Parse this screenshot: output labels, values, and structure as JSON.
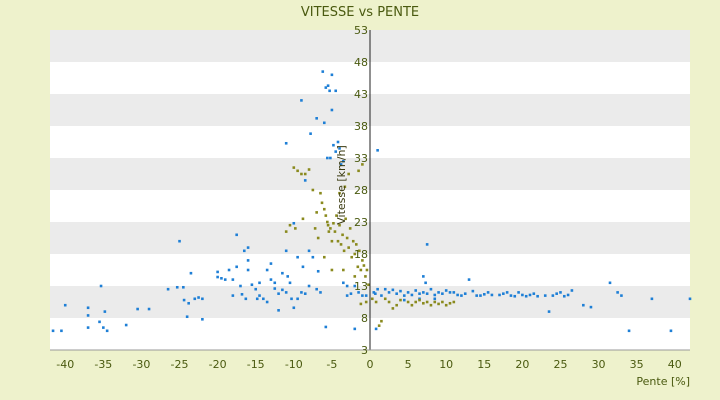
{
  "chart_data": {
    "type": "scatter",
    "title": "VITESSE vs PENTE",
    "xlabel": "Pente [%]",
    "ylabel": "Vitesse [km/h]",
    "xlim": [
      -42,
      42
    ],
    "ylim": [
      3,
      53
    ],
    "x_ticks": [
      -40,
      -35,
      -30,
      -25,
      -20,
      -15,
      -10,
      -5,
      0,
      5,
      10,
      15,
      20,
      25,
      30,
      35,
      40
    ],
    "y_ticks": [
      3,
      8,
      13,
      18,
      23,
      28,
      33,
      38,
      43,
      48,
      53
    ],
    "grid": "horizontal bands",
    "legend": "none",
    "colors": {
      "background": "#eef2cc",
      "band_light": "#ffffff",
      "band_dark": "#ebebeb",
      "series_blue": "#1e7fd6",
      "series_olive": "#8a8a1e",
      "text": "#4a5a10"
    },
    "series": [
      {
        "color": "#1e7fd6",
        "points": [
          [
            -41.6,
            6
          ],
          [
            -40.5,
            6
          ],
          [
            -40,
            10
          ],
          [
            -37,
            9.6
          ],
          [
            -37,
            8.4
          ],
          [
            -37,
            6.5
          ],
          [
            -35.5,
            7.4
          ],
          [
            -35.3,
            13
          ],
          [
            -35,
            6.5
          ],
          [
            -34.8,
            9
          ],
          [
            -34.5,
            6
          ],
          [
            -32,
            6.9
          ],
          [
            -30.5,
            9.4
          ],
          [
            -29,
            9.4
          ],
          [
            -26.5,
            12.5
          ],
          [
            -25.3,
            12.8
          ],
          [
            -25,
            20
          ],
          [
            -24.5,
            12.8
          ],
          [
            -24.4,
            10.8
          ],
          [
            -24,
            8.2
          ],
          [
            -23.8,
            10.3
          ],
          [
            -23.5,
            15
          ],
          [
            -23,
            11
          ],
          [
            -22.5,
            11.2
          ],
          [
            -22,
            7.8
          ],
          [
            -22,
            11
          ],
          [
            -20,
            15.2
          ],
          [
            -20,
            14.4
          ],
          [
            -19.5,
            14.2
          ],
          [
            -19,
            14
          ],
          [
            -18.5,
            15.5
          ],
          [
            -18,
            11.5
          ],
          [
            -18,
            14
          ],
          [
            -17.5,
            21
          ],
          [
            -17.5,
            16
          ],
          [
            -17,
            13
          ],
          [
            -16.8,
            11.7
          ],
          [
            -16.5,
            18.5
          ],
          [
            -16.3,
            11
          ],
          [
            -16,
            19
          ],
          [
            -16,
            17
          ],
          [
            -16,
            15.5
          ],
          [
            -15.5,
            13.2
          ],
          [
            -15,
            12.5
          ],
          [
            -14.8,
            11
          ],
          [
            -14.5,
            11.5
          ],
          [
            -14.5,
            13.5
          ],
          [
            -14,
            11
          ],
          [
            -13.5,
            15.5
          ],
          [
            -13.5,
            10.5
          ],
          [
            -13,
            14
          ],
          [
            -13,
            16.5
          ],
          [
            -12.5,
            12.6
          ],
          [
            -12.5,
            13.5
          ],
          [
            -12,
            11.8
          ],
          [
            -12,
            9.2
          ],
          [
            -11.5,
            15
          ],
          [
            -11.5,
            12.4
          ],
          [
            -11,
            18.5
          ],
          [
            -11,
            35.3
          ],
          [
            -11,
            12
          ],
          [
            -10.8,
            14.5
          ],
          [
            -10.5,
            13.5
          ],
          [
            -10.3,
            11
          ],
          [
            -10,
            22.8
          ],
          [
            -10,
            9.6
          ],
          [
            -9.5,
            17.5
          ],
          [
            -9.5,
            11
          ],
          [
            -9,
            42
          ],
          [
            -9,
            12
          ],
          [
            -8.8,
            16
          ],
          [
            -8.5,
            29.5
          ],
          [
            -8.5,
            11.8
          ],
          [
            -8,
            18.5
          ],
          [
            -8,
            13
          ],
          [
            -7.8,
            36.8
          ],
          [
            -7.5,
            17.5
          ],
          [
            -7,
            39.2
          ],
          [
            -7,
            12.5
          ],
          [
            -6.8,
            15.3
          ],
          [
            -6.5,
            12
          ],
          [
            -6.2,
            46.5
          ],
          [
            -6,
            38.5
          ],
          [
            -5.8,
            44
          ],
          [
            -5.6,
            33
          ],
          [
            -5.5,
            44.3
          ],
          [
            -5.3,
            43.5
          ],
          [
            -5.2,
            33
          ],
          [
            -5,
            40.5
          ],
          [
            -5,
            46
          ],
          [
            -4.8,
            35
          ],
          [
            -4.5,
            43.5
          ],
          [
            -4.5,
            34
          ],
          [
            -4.2,
            35.5
          ],
          [
            -4,
            34.5
          ],
          [
            -3.8,
            32
          ],
          [
            -3.5,
            32.5
          ],
          [
            -3.5,
            13.5
          ],
          [
            -3,
            13
          ],
          [
            -3,
            11.5
          ],
          [
            -2.5,
            11.8
          ],
          [
            -2,
            13
          ],
          [
            -1.5,
            12
          ],
          [
            -1,
            11.5
          ],
          [
            -0.5,
            11.5
          ],
          [
            -5.8,
            6.6
          ],
          [
            -2,
            6.3
          ],
          [
            0.5,
            12
          ],
          [
            0.7,
            11.8
          ],
          [
            1,
            34.2
          ],
          [
            1,
            12.5
          ],
          [
            1.5,
            11.5
          ],
          [
            2,
            12.5
          ],
          [
            2.5,
            12
          ],
          [
            3,
            12.4
          ],
          [
            3.5,
            11.8
          ],
          [
            4,
            12.2
          ],
          [
            4.5,
            11.5
          ],
          [
            5,
            12
          ],
          [
            5.5,
            11.6
          ],
          [
            6,
            12.3
          ],
          [
            6.5,
            11.8
          ],
          [
            7,
            14.5
          ],
          [
            7,
            12
          ],
          [
            7.3,
            13.5
          ],
          [
            7.5,
            11.8
          ],
          [
            8,
            12.5
          ],
          [
            8.5,
            11.6
          ],
          [
            9,
            12
          ],
          [
            9.5,
            11.8
          ],
          [
            10,
            12.3
          ],
          [
            10.5,
            12
          ],
          [
            11,
            12
          ],
          [
            11.5,
            11.6
          ],
          [
            12,
            11.5
          ],
          [
            12.5,
            11.8
          ],
          [
            13,
            14
          ],
          [
            13.5,
            12.2
          ],
          [
            14,
            11.5
          ],
          [
            14.5,
            11.5
          ],
          [
            15,
            11.7
          ],
          [
            15.5,
            12
          ],
          [
            16,
            11.6
          ],
          [
            17,
            11.6
          ],
          [
            17.5,
            11.8
          ],
          [
            18,
            12
          ],
          [
            18.5,
            11.5
          ],
          [
            19,
            11.4
          ],
          [
            19.5,
            12
          ],
          [
            20,
            11.6
          ],
          [
            20.5,
            11.4
          ],
          [
            21,
            11.6
          ],
          [
            21.5,
            11.8
          ],
          [
            22,
            11.4
          ],
          [
            23,
            11.5
          ],
          [
            23.5,
            9
          ],
          [
            24,
            11.5
          ],
          [
            24.5,
            11.8
          ],
          [
            25,
            12
          ],
          [
            25.5,
            11.4
          ],
          [
            26,
            11.6
          ],
          [
            26.5,
            12.3
          ],
          [
            28,
            10
          ],
          [
            29,
            9.7
          ],
          [
            31.5,
            13.5
          ],
          [
            32.5,
            12
          ],
          [
            33,
            11.5
          ],
          [
            34,
            6
          ],
          [
            37,
            11
          ],
          [
            39.5,
            6
          ],
          [
            42,
            11
          ],
          [
            7.5,
            19.5
          ],
          [
            8.5,
            11
          ],
          [
            6.5,
            11
          ],
          [
            4.5,
            10.8
          ],
          [
            0.8,
            6.3
          ]
        ]
      },
      {
        "color": "#8a8a1e",
        "points": [
          [
            -10,
            31.5
          ],
          [
            -9.5,
            31
          ],
          [
            -9,
            30.5
          ],
          [
            -8.5,
            30.5
          ],
          [
            -8,
            31.2
          ],
          [
            -7.5,
            28
          ],
          [
            -7,
            24.5
          ],
          [
            -6.5,
            27.5
          ],
          [
            -6.3,
            26
          ],
          [
            -6,
            25
          ],
          [
            -5.8,
            24
          ],
          [
            -5.6,
            23
          ],
          [
            -5.4,
            21.5
          ],
          [
            -5.2,
            22
          ],
          [
            -5,
            20
          ],
          [
            -4.8,
            22.8
          ],
          [
            -4.6,
            21.5
          ],
          [
            -4.4,
            24
          ],
          [
            -4.2,
            20
          ],
          [
            -4,
            22.5
          ],
          [
            -3.8,
            19.5
          ],
          [
            -3.6,
            21
          ],
          [
            -3.4,
            18.5
          ],
          [
            -3.2,
            23.5
          ],
          [
            -3,
            20.5
          ],
          [
            -2.8,
            19
          ],
          [
            -2.6,
            22
          ],
          [
            -2.4,
            17.5
          ],
          [
            -2.2,
            20
          ],
          [
            -2,
            18
          ],
          [
            -1.8,
            19.5
          ],
          [
            -1.6,
            16
          ],
          [
            -1.4,
            18.5
          ],
          [
            -1.2,
            15.5
          ],
          [
            -1,
            17
          ],
          [
            -0.8,
            16.2
          ],
          [
            -0.6,
            14.5
          ],
          [
            -0.4,
            15.5
          ],
          [
            -0.2,
            13.2
          ],
          [
            -1.5,
            31
          ],
          [
            -1,
            32
          ],
          [
            -2.8,
            30.5
          ],
          [
            -3.3,
            28.5
          ],
          [
            -4,
            27.5
          ],
          [
            -5.5,
            22.5
          ],
          [
            -6.8,
            20.5
          ],
          [
            -7.2,
            22
          ],
          [
            -8.8,
            23.5
          ],
          [
            -9.8,
            22
          ],
          [
            -10.5,
            22.5
          ],
          [
            -11,
            21.5
          ],
          [
            -6,
            17.5
          ],
          [
            -5,
            15.5
          ],
          [
            -3.5,
            15.5
          ],
          [
            -2,
            14.5
          ],
          [
            0.3,
            11
          ],
          [
            0.8,
            10.5
          ],
          [
            1.2,
            6.8
          ],
          [
            1.5,
            7.5
          ],
          [
            2,
            11
          ],
          [
            2.5,
            10.5
          ],
          [
            3,
            9.5
          ],
          [
            3.5,
            10
          ],
          [
            4,
            10.8
          ],
          [
            5,
            10.5
          ],
          [
            5.5,
            10
          ],
          [
            6,
            10.5
          ],
          [
            6.5,
            10.8
          ],
          [
            7,
            10.3
          ],
          [
            7.5,
            10.5
          ],
          [
            8,
            10
          ],
          [
            8.5,
            10.5
          ],
          [
            9,
            10.2
          ],
          [
            9.5,
            10.5
          ],
          [
            10,
            10
          ],
          [
            10.5,
            10.3
          ],
          [
            11,
            10.5
          ],
          [
            -1.2,
            10.2
          ],
          [
            -0.5,
            10.5
          ]
        ]
      }
    ]
  }
}
